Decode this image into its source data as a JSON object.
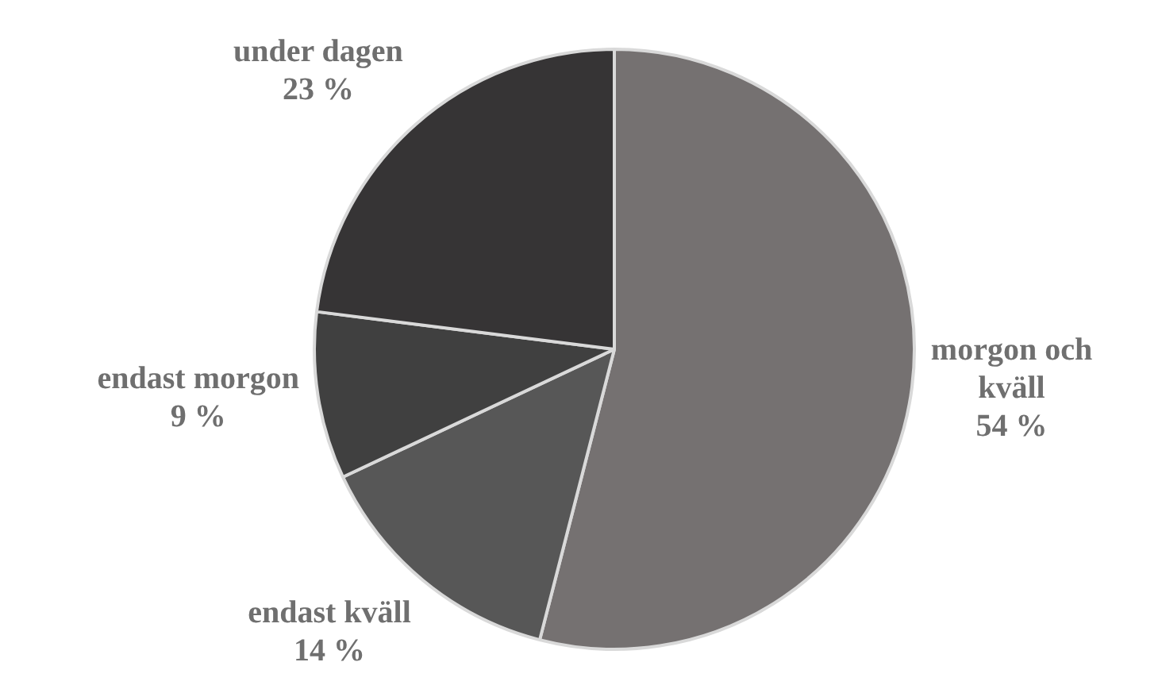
{
  "chart_data": {
    "type": "pie",
    "categories": [
      "morgon och kväll",
      "endast kväll",
      "endast morgon",
      "under dagen"
    ],
    "values": [
      54,
      14,
      9,
      23
    ],
    "value_labels": [
      "54 %",
      "14 %",
      "9 %",
      "23 %"
    ],
    "colors": [
      "#757171",
      "#575757",
      "#404040",
      "#363435"
    ],
    "legend": false
  }
}
